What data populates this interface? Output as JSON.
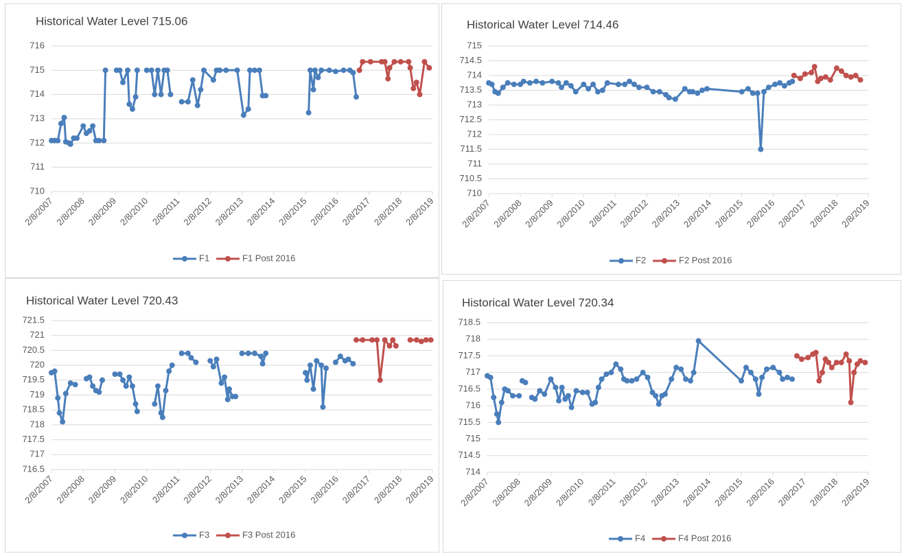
{
  "chart_data": [
    {
      "type": "line",
      "title": "Historical Water Level 715.06",
      "xlim": [
        2007.1,
        2019.1
      ],
      "xticks": [
        {
          "value": 2007.1,
          "label": "2/8/2007"
        },
        {
          "value": 2008.1,
          "label": "2/8/2008"
        },
        {
          "value": 2009.1,
          "label": "2/8/2009"
        },
        {
          "value": 2010.1,
          "label": "2/8/2010"
        },
        {
          "value": 2011.1,
          "label": "2/8/2011"
        },
        {
          "value": 2012.1,
          "label": "2/8/2012"
        },
        {
          "value": 2013.1,
          "label": "2/8/2013"
        },
        {
          "value": 2014.1,
          "label": "2/8/2014"
        },
        {
          "value": 2015.1,
          "label": "2/8/2015"
        },
        {
          "value": 2016.1,
          "label": "2/8/2016"
        },
        {
          "value": 2017.1,
          "label": "2/8/2017"
        },
        {
          "value": 2018.1,
          "label": "2/8/2018"
        },
        {
          "value": 2019.1,
          "label": "2/8/2019"
        }
      ],
      "ylim": [
        710,
        716
      ],
      "yticks": [
        710,
        711,
        712,
        713,
        714,
        715,
        716
      ],
      "grid": true,
      "series": [
        {
          "name": "F1",
          "color": "#4a7ebb",
          "x": [
            2007.1,
            2007.2,
            2007.3,
            2007.4,
            2007.5,
            2007.55,
            2007.65,
            2007.7,
            2007.8,
            2007.9,
            2008.1,
            2008.2,
            2008.3,
            2008.4,
            2008.5,
            2008.6,
            2008.75,
            2008.8,
            null,
            2009.15,
            2009.25,
            2009.35,
            2009.5,
            2009.55,
            2009.65,
            2009.75,
            2009.8,
            null,
            2010.1,
            2010.25,
            2010.35,
            2010.45,
            2010.55,
            2010.65,
            2010.75,
            2010.85,
            null,
            2011.2,
            2011.4,
            2011.55,
            2011.7,
            2011.8,
            2011.9,
            2012.2,
            2012.3,
            2012.4,
            2012.6,
            2012.95,
            2013.15,
            2013.3,
            2013.35,
            2013.5,
            2013.65,
            2013.75,
            2013.85,
            null,
            2015.2,
            2015.25,
            2015.35,
            2015.4,
            2015.5,
            2015.6,
            2015.85,
            2016.05,
            2016.3,
            2016.5,
            2016.6,
            2016.7
          ],
          "values": [
            712.1,
            712.1,
            712.1,
            712.8,
            713.05,
            712.05,
            712,
            711.95,
            712.2,
            712.2,
            712.7,
            712.4,
            712.5,
            712.7,
            712.1,
            712.1,
            712.1,
            715,
            null,
            715,
            715,
            714.5,
            715,
            713.6,
            713.4,
            713.9,
            715,
            null,
            715,
            715,
            714,
            715,
            714,
            715,
            715,
            714,
            null,
            713.7,
            713.7,
            714.6,
            713.55,
            714.2,
            715,
            714.6,
            715,
            715,
            715,
            715,
            713.15,
            713.4,
            715,
            715,
            715,
            713.95,
            713.95,
            null,
            713.25,
            715,
            714.2,
            715,
            714.7,
            715,
            715,
            714.95,
            715,
            715,
            714.9,
            713.9
          ]
        },
        {
          "name": "F1 Post 2016",
          "color": "#c0504d",
          "x": [
            2016.8,
            2016.9,
            2017.15,
            2017.5,
            2017.6,
            2017.7,
            2017.75,
            2017.9,
            2018.1,
            2018.35,
            2018.4,
            2018.5,
            2018.6,
            2018.7,
            2018.85,
            2019.0
          ],
          "values": [
            715,
            715.35,
            715.35,
            715.35,
            715.35,
            714.65,
            715.1,
            715.35,
            715.35,
            715.35,
            715.1,
            714.25,
            714.5,
            714,
            715.35,
            715.1
          ]
        }
      ]
    },
    {
      "type": "line",
      "title": "Historical Water Level 714.46",
      "xlim": [
        2007.1,
        2019.1
      ],
      "xticks": [
        {
          "value": 2007.1,
          "label": "2/8/2007"
        },
        {
          "value": 2008.1,
          "label": "2/8/2008"
        },
        {
          "value": 2009.1,
          "label": "2/8/2009"
        },
        {
          "value": 2010.1,
          "label": "2/8/2010"
        },
        {
          "value": 2011.1,
          "label": "2/8/2011"
        },
        {
          "value": 2012.1,
          "label": "2/8/2012"
        },
        {
          "value": 2013.1,
          "label": "2/8/2013"
        },
        {
          "value": 2014.1,
          "label": "2/8/2014"
        },
        {
          "value": 2015.1,
          "label": "2/8/2015"
        },
        {
          "value": 2016.1,
          "label": "2/8/2016"
        },
        {
          "value": 2017.1,
          "label": "2/8/2017"
        },
        {
          "value": 2018.1,
          "label": "2/8/2018"
        },
        {
          "value": 2019.1,
          "label": "2/8/2019"
        }
      ],
      "ylim": [
        710,
        715
      ],
      "yticks": [
        710,
        710.5,
        711,
        711.5,
        712,
        712.5,
        713,
        713.5,
        714,
        714.5,
        715
      ],
      "grid": true,
      "series": [
        {
          "name": "F2",
          "color": "#4a7ebb",
          "x": [
            2007.1,
            2007.2,
            2007.3,
            2007.4,
            2007.55,
            2007.7,
            2007.9,
            2008.1,
            2008.2,
            2008.4,
            2008.6,
            2008.8,
            2009.1,
            2009.3,
            2009.4,
            2009.55,
            2009.7,
            2009.85,
            2010.1,
            2010.25,
            2010.4,
            2010.55,
            2010.7,
            2010.85,
            2011.2,
            2011.4,
            2011.55,
            2011.7,
            2011.85,
            2012.1,
            2012.3,
            2012.5,
            2012.7,
            2012.8,
            2013.0,
            2013.3,
            2013.45,
            2013.55,
            2013.7,
            2013.85,
            2014.0,
            2015.1,
            2015.3,
            2015.45,
            2015.6,
            2015.7,
            2015.8,
            2015.95,
            2016.15,
            2016.3,
            2016.45,
            2016.6,
            2016.7
          ],
          "values": [
            713.75,
            713.7,
            713.45,
            713.4,
            713.6,
            713.75,
            713.7,
            713.7,
            713.8,
            713.75,
            713.8,
            713.75,
            713.8,
            713.75,
            713.6,
            713.75,
            713.65,
            713.45,
            713.7,
            713.55,
            713.7,
            713.45,
            713.5,
            713.75,
            713.7,
            713.7,
            713.8,
            713.7,
            713.6,
            713.6,
            713.45,
            713.45,
            713.35,
            713.25,
            713.2,
            713.55,
            713.45,
            713.45,
            713.4,
            713.5,
            713.55,
            713.45,
            713.55,
            713.4,
            713.4,
            711.5,
            713.45,
            713.6,
            713.7,
            713.75,
            713.65,
            713.75,
            713.8
          ]
        },
        {
          "name": "F2 Post 2016",
          "color": "#c0504d",
          "x": [
            2016.75,
            2016.95,
            2017.1,
            2017.3,
            2017.4,
            2017.5,
            2017.6,
            2017.75,
            2017.9,
            2018.1,
            2018.25,
            2018.4,
            2018.55,
            2018.7,
            2018.85
          ],
          "values": [
            714,
            713.9,
            714.05,
            714.1,
            714.3,
            713.8,
            713.9,
            713.95,
            713.85,
            714.25,
            714.15,
            714,
            713.95,
            714,
            713.85
          ]
        }
      ]
    },
    {
      "type": "line",
      "title": "Historical Water Level 720.43",
      "xlim": [
        2007.1,
        2019.1
      ],
      "xticks": [
        {
          "value": 2007.1,
          "label": "2/8/2007"
        },
        {
          "value": 2008.1,
          "label": "2/8/2008"
        },
        {
          "value": 2009.1,
          "label": "2/8/2009"
        },
        {
          "value": 2010.1,
          "label": "2/8/2010"
        },
        {
          "value": 2011.1,
          "label": "2/8/2011"
        },
        {
          "value": 2012.1,
          "label": "2/8/2012"
        },
        {
          "value": 2013.1,
          "label": "2/8/2013"
        },
        {
          "value": 2014.1,
          "label": "2/8/2014"
        },
        {
          "value": 2015.1,
          "label": "2/8/2015"
        },
        {
          "value": 2016.1,
          "label": "2/8/2016"
        },
        {
          "value": 2017.1,
          "label": "2/8/2017"
        },
        {
          "value": 2018.1,
          "label": "2/8/2018"
        },
        {
          "value": 2019.1,
          "label": "2/8/2019"
        }
      ],
      "ylim": [
        716.5,
        721.5
      ],
      "yticks": [
        716.5,
        717,
        717.5,
        718,
        718.5,
        719,
        719.5,
        720,
        720.5,
        721,
        721.5
      ],
      "grid": true,
      "series": [
        {
          "name": "F3",
          "color": "#4a7ebb",
          "x": [
            2007.1,
            2007.2,
            2007.3,
            2007.35,
            2007.45,
            2007.55,
            2007.7,
            2007.85,
            null,
            2008.2,
            2008.3,
            2008.4,
            2008.5,
            2008.6,
            2008.7,
            null,
            2009.1,
            2009.25,
            2009.35,
            2009.45,
            2009.55,
            2009.65,
            2009.75,
            2009.8,
            null,
            2010.35,
            2010.45,
            2010.55,
            2010.6,
            2010.7,
            2010.8,
            2010.9,
            null,
            2011.2,
            2011.4,
            2011.5,
            2011.65,
            null,
            2012.1,
            2012.2,
            2012.3,
            2012.45,
            2012.55,
            2012.65,
            2012.7,
            2012.8,
            2012.9,
            null,
            2013.1,
            2013.3,
            2013.5,
            2013.7,
            2013.75,
            2013.85,
            null,
            2015.1,
            2015.15,
            2015.25,
            2015.35,
            2015.45,
            2015.6,
            2015.65,
            2015.75,
            null,
            2016.05,
            2016.2,
            2016.35,
            2016.45,
            2016.6
          ],
          "values": [
            719.75,
            719.8,
            718.9,
            718.4,
            718.1,
            719.05,
            719.4,
            719.35,
            null,
            719.55,
            719.6,
            719.3,
            719.15,
            719.1,
            719.5,
            null,
            719.7,
            719.7,
            719.5,
            719.3,
            719.6,
            719.3,
            718.7,
            718.45,
            null,
            718.7,
            719.3,
            718.4,
            718.25,
            719.15,
            719.8,
            720,
            null,
            720.4,
            720.4,
            720.25,
            720.1,
            null,
            720.15,
            719.95,
            720.2,
            719.4,
            719.6,
            718.85,
            719.2,
            718.95,
            718.95,
            null,
            720.4,
            720.4,
            720.4,
            720.3,
            720.05,
            720.4,
            null,
            719.75,
            719.5,
            720,
            719.2,
            720.15,
            720,
            718.6,
            719.9,
            null,
            720.1,
            720.3,
            720.15,
            720.2,
            720.05
          ]
        },
        {
          "name": "F3 Post 2016",
          "color": "#c0504d",
          "x": [
            2016.7,
            2016.9,
            2017.2,
            2017.35,
            2017.45,
            2017.6,
            2017.75,
            2017.85,
            2017.95,
            null,
            2018.4,
            2018.6,
            2018.75,
            2018.9,
            2019.05
          ],
          "values": [
            720.85,
            720.85,
            720.85,
            720.85,
            719.5,
            720.85,
            720.65,
            720.85,
            720.65,
            null,
            720.85,
            720.85,
            720.8,
            720.85,
            720.85
          ]
        }
      ]
    },
    {
      "type": "line",
      "title": "Historical Water Level 720.34",
      "xlim": [
        2007.1,
        2019.1
      ],
      "xticks": [
        {
          "value": 2007.1,
          "label": "2/8/2007"
        },
        {
          "value": 2008.1,
          "label": "2/8/2008"
        },
        {
          "value": 2009.1,
          "label": "2/8/2009"
        },
        {
          "value": 2010.1,
          "label": "2/8/2010"
        },
        {
          "value": 2011.1,
          "label": "2/8/2011"
        },
        {
          "value": 2012.1,
          "label": "2/8/2012"
        },
        {
          "value": 2013.1,
          "label": "2/8/2013"
        },
        {
          "value": 2014.1,
          "label": "2/8/2014"
        },
        {
          "value": 2015.1,
          "label": "2/8/2015"
        },
        {
          "value": 2016.1,
          "label": "2/8/2016"
        },
        {
          "value": 2017.1,
          "label": "2/8/2017"
        },
        {
          "value": 2018.1,
          "label": "2/8/2018"
        },
        {
          "value": 2019.1,
          "label": "2/8/2019"
        }
      ],
      "ylim": [
        714,
        718.5
      ],
      "yticks": [
        714,
        714.5,
        715,
        715.5,
        716,
        716.5,
        717,
        717.5,
        718,
        718.5
      ],
      "grid": true,
      "series": [
        {
          "name": "F4",
          "color": "#4a7ebb",
          "x": [
            2007.1,
            2007.2,
            2007.3,
            2007.4,
            2007.45,
            2007.55,
            2007.65,
            2007.75,
            2007.9,
            2008.1,
            null,
            2008.2,
            2008.3,
            null,
            2008.5,
            2008.6,
            2008.75,
            2008.9,
            2009.1,
            2009.25,
            2009.35,
            2009.45,
            2009.55,
            2009.65,
            2009.75,
            2009.9,
            2010.1,
            2010.25,
            2010.4,
            2010.5,
            2010.6,
            2010.7,
            2010.85,
            2011.0,
            2011.15,
            2011.3,
            2011.4,
            2011.5,
            2011.65,
            2011.8,
            2012.0,
            2012.15,
            2012.3,
            2012.4,
            2012.5,
            2012.6,
            2012.7,
            2012.9,
            2013.05,
            2013.2,
            2013.35,
            2013.5,
            2013.6,
            2013.75,
            2015.1,
            2015.25,
            2015.4,
            2015.55,
            2015.65,
            2015.75,
            2015.9,
            2016.1,
            2016.3,
            2016.4,
            2016.55,
            2016.7
          ],
          "values": [
            716.9,
            716.85,
            716.25,
            715.75,
            715.5,
            716.1,
            716.5,
            716.45,
            716.3,
            716.3,
            null,
            716.75,
            716.7,
            null,
            716.25,
            716.2,
            716.45,
            716.35,
            716.8,
            716.55,
            716.15,
            716.55,
            716.2,
            716.3,
            715.95,
            716.45,
            716.4,
            716.4,
            716.05,
            716.1,
            716.55,
            716.8,
            716.95,
            717,
            717.25,
            717.1,
            716.8,
            716.75,
            716.75,
            716.8,
            717,
            716.85,
            716.4,
            716.3,
            716.05,
            716.3,
            716.35,
            716.8,
            717.15,
            717.1,
            716.8,
            716.75,
            717,
            717.95,
            716.75,
            717.15,
            717,
            716.8,
            716.35,
            716.85,
            717.1,
            717.15,
            717,
            716.8,
            716.85,
            716.8
          ]
        },
        {
          "name": "F4 Post 2016",
          "color": "#c0504d",
          "x": [
            2016.85,
            2017.0,
            2017.2,
            2017.35,
            2017.45,
            2017.55,
            2017.65,
            2017.75,
            2017.85,
            2017.95,
            2018.1,
            2018.25,
            2018.4,
            2018.5,
            2018.55,
            2018.65,
            2018.75,
            2018.85,
            2019.0
          ],
          "values": [
            717.5,
            717.4,
            717.45,
            717.55,
            717.6,
            716.75,
            717,
            717.4,
            717.3,
            717.15,
            717.3,
            717.3,
            717.55,
            717.35,
            716.1,
            717,
            717.25,
            717.35,
            717.3
          ]
        }
      ]
    }
  ]
}
